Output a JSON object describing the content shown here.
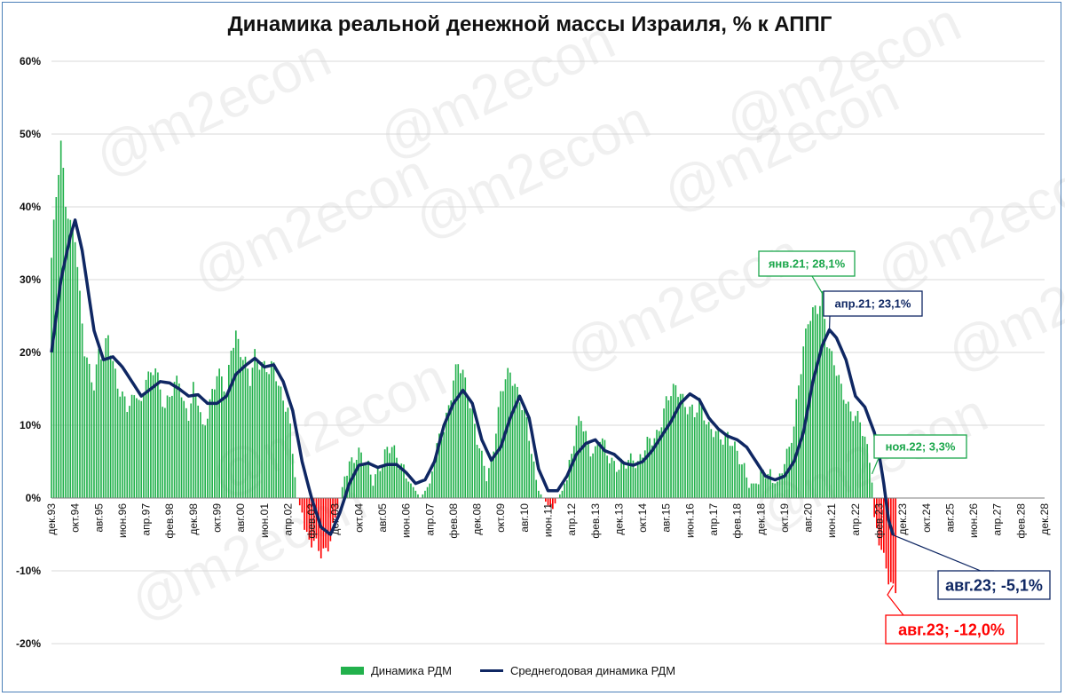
{
  "title": "Динамика реальной денежной массы Израиля, % к АППГ",
  "watermark": "@m2econ",
  "colors": {
    "bar_pos": "#22b14c",
    "bar_neg": "#ff0000",
    "line": "#0f2763",
    "grid": "#d9d9d9",
    "green_label": "#1aa64a",
    "navy_label": "#0f2763",
    "red_label": "#ff0000"
  },
  "legend": {
    "bars": "Динамика РДМ",
    "line": "Среднегодовая динамика РДМ"
  },
  "annotations": [
    {
      "id": "jan21",
      "text": "янв.21; 28,1%",
      "color": "green"
    },
    {
      "id": "apr21",
      "text": "апр.21; 23,1%",
      "color": "navy"
    },
    {
      "id": "nov22",
      "text": "ноя.22; 3,3%",
      "color": "green"
    },
    {
      "id": "aug23line",
      "text": "авг.23; -5,1%",
      "color": "navy"
    },
    {
      "id": "aug23bar",
      "text": "авг.23; -12,0%",
      "color": "red"
    }
  ],
  "chart_data": {
    "type": "bar",
    "title": "Динамика реальной денежной массы Израиля, % к АППГ",
    "y_ticks": [
      "60%",
      "50%",
      "40%",
      "30%",
      "20%",
      "10%",
      "0%",
      "-10%",
      "-20%"
    ],
    "ylim": [
      -20,
      60
    ],
    "x_ticks": [
      "дек.93",
      "окт.94",
      "авг.95",
      "июн.96",
      "апр.97",
      "фев.98",
      "дек.98",
      "окт.99",
      "авг.00",
      "июн.01",
      "апр.02",
      "фев.03",
      "дек.03",
      "окт.04",
      "авг.05",
      "июн.06",
      "апр.07",
      "фев.08",
      "дек.08",
      "окт.09",
      "авг.10",
      "июн.11",
      "апр.12",
      "фев.13",
      "дек.13",
      "окт.14",
      "авг.15",
      "июн.16",
      "апр.17",
      "фев.18",
      "дек.18",
      "окт.19",
      "авг.20",
      "июн.21",
      "апр.22",
      "фев.23",
      "дек.23",
      "окт.24",
      "авг.25",
      "июн.26",
      "апр.27",
      "фев.28",
      "дек.28"
    ],
    "x_range": [
      "дек.93",
      "дек.28"
    ],
    "bar_anchors": [
      [
        0,
        33
      ],
      [
        2,
        41
      ],
      [
        4,
        48.3
      ],
      [
        6,
        41
      ],
      [
        8,
        38
      ],
      [
        10,
        36
      ],
      [
        12,
        27
      ],
      [
        14,
        20
      ],
      [
        16,
        18
      ],
      [
        18,
        16
      ],
      [
        20,
        20
      ],
      [
        22,
        19
      ],
      [
        24,
        22
      ],
      [
        26,
        19
      ],
      [
        28,
        16
      ],
      [
        30,
        14
      ],
      [
        32,
        12
      ],
      [
        34,
        13
      ],
      [
        36,
        15
      ],
      [
        38,
        13
      ],
      [
        40,
        17
      ],
      [
        42,
        16
      ],
      [
        44,
        18
      ],
      [
        46,
        15
      ],
      [
        48,
        13
      ],
      [
        50,
        14
      ],
      [
        52,
        15
      ],
      [
        54,
        16
      ],
      [
        56,
        13
      ],
      [
        58,
        12
      ],
      [
        60,
        15
      ],
      [
        62,
        13
      ],
      [
        64,
        9
      ],
      [
        66,
        12
      ],
      [
        68,
        15
      ],
      [
        70,
        17
      ],
      [
        72,
        16
      ],
      [
        74,
        14
      ],
      [
        76,
        21
      ],
      [
        78,
        23
      ],
      [
        80,
        20
      ],
      [
        82,
        18
      ],
      [
        84,
        16
      ],
      [
        86,
        20
      ],
      [
        88,
        19
      ],
      [
        90,
        18
      ],
      [
        92,
        17
      ],
      [
        94,
        18
      ],
      [
        96,
        16
      ],
      [
        98,
        14
      ],
      [
        100,
        12
      ],
      [
        102,
        6
      ],
      [
        104,
        0
      ],
      [
        106,
        -2
      ],
      [
        108,
        -5
      ],
      [
        110,
        -6
      ],
      [
        112,
        -7
      ],
      [
        114,
        -7.8
      ],
      [
        116,
        -7
      ],
      [
        118,
        -5
      ],
      [
        120,
        -3
      ],
      [
        122,
        0
      ],
      [
        124,
        3
      ],
      [
        126,
        5
      ],
      [
        128,
        6
      ],
      [
        130,
        6
      ],
      [
        132,
        5
      ],
      [
        134,
        4
      ],
      [
        136,
        3
      ],
      [
        138,
        4
      ],
      [
        140,
        5
      ],
      [
        142,
        6
      ],
      [
        144,
        7
      ],
      [
        146,
        6
      ],
      [
        148,
        5
      ],
      [
        150,
        3
      ],
      [
        152,
        2
      ],
      [
        154,
        1
      ],
      [
        156,
        0
      ],
      [
        158,
        1
      ],
      [
        160,
        2
      ],
      [
        162,
        5
      ],
      [
        164,
        8
      ],
      [
        166,
        10
      ],
      [
        168,
        13
      ],
      [
        170,
        16
      ],
      [
        172,
        18
      ],
      [
        174,
        17
      ],
      [
        176,
        15
      ],
      [
        178,
        12
      ],
      [
        180,
        8
      ],
      [
        182,
        5
      ],
      [
        184,
        3
      ],
      [
        186,
        5
      ],
      [
        188,
        10
      ],
      [
        190,
        14
      ],
      [
        192,
        16
      ],
      [
        194,
        17
      ],
      [
        196,
        16
      ],
      [
        198,
        14
      ],
      [
        200,
        12
      ],
      [
        202,
        8
      ],
      [
        204,
        4
      ],
      [
        206,
        1
      ],
      [
        208,
        0
      ],
      [
        210,
        -1
      ],
      [
        212,
        -1.5
      ],
      [
        214,
        0
      ],
      [
        216,
        1
      ],
      [
        218,
        3
      ],
      [
        220,
        6
      ],
      [
        222,
        9
      ],
      [
        224,
        11
      ],
      [
        226,
        9
      ],
      [
        228,
        7
      ],
      [
        230,
        6
      ],
      [
        232,
        8
      ],
      [
        234,
        7
      ],
      [
        236,
        6
      ],
      [
        238,
        5
      ],
      [
        240,
        4
      ],
      [
        242,
        4
      ],
      [
        244,
        5
      ],
      [
        246,
        6
      ],
      [
        248,
        5
      ],
      [
        250,
        6
      ],
      [
        252,
        7
      ],
      [
        254,
        8
      ],
      [
        256,
        9
      ],
      [
        258,
        11
      ],
      [
        260,
        13
      ],
      [
        262,
        14
      ],
      [
        264,
        15
      ],
      [
        266,
        15
      ],
      [
        268,
        13
      ],
      [
        270,
        12
      ],
      [
        272,
        11
      ],
      [
        274,
        13
      ],
      [
        276,
        12
      ],
      [
        278,
        10
      ],
      [
        280,
        9
      ],
      [
        282,
        8
      ],
      [
        284,
        8
      ],
      [
        286,
        9
      ],
      [
        288,
        8
      ],
      [
        290,
        6
      ],
      [
        292,
        4
      ],
      [
        294,
        3
      ],
      [
        296,
        2
      ],
      [
        298,
        2
      ],
      [
        300,
        3
      ],
      [
        302,
        3
      ],
      [
        304,
        3
      ],
      [
        306,
        2
      ],
      [
        308,
        3
      ],
      [
        310,
        5
      ],
      [
        312,
        6
      ],
      [
        314,
        10
      ],
      [
        316,
        16
      ],
      [
        318,
        21
      ],
      [
        320,
        24
      ],
      [
        322,
        25
      ],
      [
        324,
        26
      ],
      [
        326,
        28.1
      ],
      [
        328,
        22
      ],
      [
        330,
        19
      ],
      [
        332,
        17
      ],
      [
        334,
        15
      ],
      [
        336,
        14
      ],
      [
        338,
        12
      ],
      [
        340,
        11
      ],
      [
        342,
        10
      ],
      [
        344,
        8
      ],
      [
        346,
        6
      ],
      [
        347,
        3.3
      ],
      [
        348,
        -3
      ],
      [
        350,
        -6
      ],
      [
        352,
        -9
      ],
      [
        354,
        -11
      ],
      [
        356,
        -12
      ],
      [
        357,
        -12
      ]
    ],
    "line_anchors": [
      [
        0,
        20
      ],
      [
        4,
        30
      ],
      [
        8,
        36
      ],
      [
        10,
        38.2
      ],
      [
        13,
        34
      ],
      [
        18,
        23
      ],
      [
        22,
        19
      ],
      [
        26,
        19.4
      ],
      [
        30,
        18
      ],
      [
        34,
        16
      ],
      [
        38,
        14
      ],
      [
        42,
        15
      ],
      [
        46,
        16
      ],
      [
        50,
        15.8
      ],
      [
        54,
        15
      ],
      [
        58,
        14
      ],
      [
        62,
        14.2
      ],
      [
        66,
        13
      ],
      [
        70,
        13
      ],
      [
        74,
        14
      ],
      [
        78,
        17
      ],
      [
        82,
        18.2
      ],
      [
        86,
        19.2
      ],
      [
        90,
        18
      ],
      [
        94,
        18.3
      ],
      [
        98,
        16
      ],
      [
        102,
        12
      ],
      [
        106,
        5
      ],
      [
        110,
        0
      ],
      [
        114,
        -4
      ],
      [
        118,
        -5
      ],
      [
        122,
        -2
      ],
      [
        126,
        2
      ],
      [
        130,
        4.5
      ],
      [
        134,
        4.8
      ],
      [
        138,
        4.2
      ],
      [
        142,
        4.6
      ],
      [
        146,
        4.6
      ],
      [
        150,
        3.5
      ],
      [
        154,
        2
      ],
      [
        158,
        2.5
      ],
      [
        162,
        5
      ],
      [
        166,
        10
      ],
      [
        170,
        13
      ],
      [
        174,
        14.8
      ],
      [
        178,
        13
      ],
      [
        182,
        8
      ],
      [
        186,
        5.2
      ],
      [
        190,
        7
      ],
      [
        194,
        11
      ],
      [
        198,
        14
      ],
      [
        202,
        11
      ],
      [
        206,
        4
      ],
      [
        210,
        1
      ],
      [
        214,
        1
      ],
      [
        218,
        3
      ],
      [
        222,
        6
      ],
      [
        226,
        7.5
      ],
      [
        230,
        8
      ],
      [
        234,
        6.5
      ],
      [
        238,
        6
      ],
      [
        242,
        4.8
      ],
      [
        246,
        4.5
      ],
      [
        250,
        5
      ],
      [
        254,
        6.5
      ],
      [
        258,
        8.5
      ],
      [
        262,
        10.5
      ],
      [
        266,
        13
      ],
      [
        270,
        14.3
      ],
      [
        274,
        13.5
      ],
      [
        278,
        11
      ],
      [
        282,
        9.5
      ],
      [
        286,
        8.5
      ],
      [
        290,
        8
      ],
      [
        294,
        7
      ],
      [
        298,
        5
      ],
      [
        302,
        3
      ],
      [
        306,
        2.5
      ],
      [
        310,
        3
      ],
      [
        314,
        5
      ],
      [
        318,
        9
      ],
      [
        322,
        16
      ],
      [
        326,
        21
      ],
      [
        329,
        23.1
      ],
      [
        332,
        22
      ],
      [
        336,
        19
      ],
      [
        340,
        14
      ],
      [
        344,
        12.5
      ],
      [
        348,
        9
      ],
      [
        350,
        6
      ],
      [
        352,
        2
      ],
      [
        354,
        -3
      ],
      [
        356,
        -5.1
      ]
    ],
    "series": [
      {
        "name": "Динамика РДМ",
        "type": "bar"
      },
      {
        "name": "Среднегодовая динамика РДМ",
        "type": "line"
      }
    ],
    "legend_position": "bottom",
    "grid": true
  }
}
